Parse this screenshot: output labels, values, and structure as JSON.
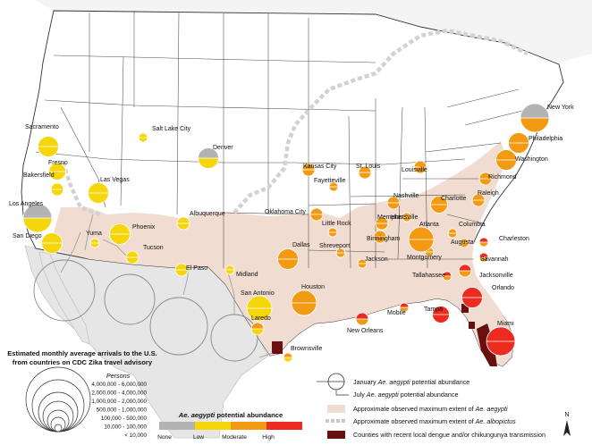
{
  "colors": {
    "none": "#b3b3b3",
    "low": "#f5d60a",
    "moderate": "#f29b12",
    "high": "#ee2b1f",
    "aegypti_extent": "#f1dcd1",
    "albopictus_line": "#c8c8c8",
    "transmission": "#6a0f0f",
    "land": "#ffffff",
    "neighbor": "#e6e6e6",
    "border": "#333333"
  },
  "cities": [
    {
      "name": "Sacramento",
      "jan": "low",
      "jul": "low",
      "arrivals": 1500000,
      "link": "label-only"
    },
    {
      "name": "Fresno",
      "jan": "low",
      "jul": "low",
      "arrivals": 500000
    },
    {
      "name": "Bakersfield",
      "jan": "low",
      "jul": "low",
      "arrivals": 100000
    },
    {
      "name": "Los Angeles",
      "jan": "none",
      "jul": "low",
      "arrivals": 5000000
    },
    {
      "name": "San Diego",
      "jan": "low",
      "jul": "low",
      "arrivals": 1500000
    },
    {
      "name": "Las Vegas",
      "jan": "low",
      "jul": "low",
      "arrivals": 1000000
    },
    {
      "name": "Yuma",
      "jan": "low",
      "jul": "low",
      "arrivals": 50000
    },
    {
      "name": "Phoenix",
      "jan": "low",
      "jul": "low",
      "arrivals": 1500000
    },
    {
      "name": "Tucson",
      "jan": "low",
      "jul": "low",
      "arrivals": 200000
    },
    {
      "name": "Salt Lake City",
      "jan": "low",
      "jul": "low",
      "arrivals": 50000
    },
    {
      "name": "Denver",
      "jan": "none",
      "jul": "low",
      "arrivals": 1500000
    },
    {
      "name": "Albuquerque",
      "jan": "low",
      "jul": "low",
      "arrivals": 200000
    },
    {
      "name": "El Paso",
      "jan": "low",
      "jul": "low",
      "arrivals": 200000
    },
    {
      "name": "Midland",
      "jan": "low",
      "jul": "low",
      "arrivals": 50000
    },
    {
      "name": "San Antonio",
      "jan": "low",
      "jul": "low",
      "arrivals": 2500000
    },
    {
      "name": "Laredo",
      "jan": "moderate",
      "jul": "low",
      "arrivals": 100000
    },
    {
      "name": "Brownsville",
      "jan": "moderate",
      "jul": "low",
      "arrivals": 50000
    },
    {
      "name": "Houston",
      "jan": "moderate",
      "jul": "moderate",
      "arrivals": 2500000
    },
    {
      "name": "Dallas",
      "jan": "moderate",
      "jul": "moderate",
      "arrivals": 1000000
    },
    {
      "name": "Shreveport",
      "jan": "moderate",
      "jul": "moderate",
      "arrivals": 50000
    },
    {
      "name": "Oklahoma City",
      "jan": "moderate",
      "jul": "moderate",
      "arrivals": 100000
    },
    {
      "name": "Kansas City",
      "jan": "moderate",
      "jul": "moderate",
      "arrivals": 100000
    },
    {
      "name": "St. Louis",
      "jan": "moderate",
      "jul": "moderate",
      "arrivals": 100000
    },
    {
      "name": "Fayetteville",
      "jan": "moderate",
      "jul": "moderate",
      "arrivals": 30000
    },
    {
      "name": "Little Rock",
      "jan": "moderate",
      "jul": "moderate",
      "arrivals": 50000
    },
    {
      "name": "Memphis",
      "jan": "moderate",
      "jul": "moderate",
      "arrivals": 100000
    },
    {
      "name": "Louisville",
      "jan": "moderate",
      "jul": "moderate",
      "arrivals": 100000
    },
    {
      "name": "Nashville",
      "jan": "moderate",
      "jul": "moderate",
      "arrivals": 100000
    },
    {
      "name": "Huntsville",
      "jan": "moderate",
      "jul": "moderate",
      "arrivals": 50000
    },
    {
      "name": "Birmingham",
      "jan": "moderate",
      "jul": "moderate",
      "arrivals": 100000
    },
    {
      "name": "Jackson",
      "jan": "moderate",
      "jul": "moderate",
      "arrivals": 50000
    },
    {
      "name": "Montgomery",
      "jan": "moderate",
      "jul": "moderate",
      "arrivals": 50000
    },
    {
      "name": "Mobile",
      "jan": "high",
      "jul": "moderate",
      "arrivals": 50000
    },
    {
      "name": "New Orleans",
      "jan": "high",
      "jul": "moderate",
      "arrivals": 100000
    },
    {
      "name": "Tallahassee",
      "jan": "high",
      "jul": "moderate",
      "arrivals": 50000
    },
    {
      "name": "Tampa",
      "jan": "high",
      "jul": "high",
      "arrivals": 500000
    },
    {
      "name": "Orlando",
      "jan": "high",
      "jul": "high",
      "arrivals": 1500000
    },
    {
      "name": "Miami",
      "jan": "high",
      "jul": "high",
      "arrivals": 5000000
    },
    {
      "name": "Jacksonville",
      "jan": "high",
      "jul": "moderate",
      "arrivals": 100000
    },
    {
      "name": "Savannah",
      "jan": "high",
      "jul": "moderate",
      "arrivals": 50000
    },
    {
      "name": "Charleston",
      "jan": "high",
      "jul": "moderate",
      "arrivals": 50000
    },
    {
      "name": "Augusta",
      "jan": "moderate",
      "jul": "moderate",
      "arrivals": 50000
    },
    {
      "name": "Columbia",
      "jan": "moderate",
      "jul": "moderate",
      "arrivals": 50000
    },
    {
      "name": "Atlanta",
      "jan": "moderate",
      "jul": "moderate",
      "arrivals": 2500000
    },
    {
      "name": "Charlotte",
      "jan": "moderate",
      "jul": "moderate",
      "arrivals": 500000
    },
    {
      "name": "Raleigh",
      "jan": "moderate",
      "jul": "moderate",
      "arrivals": 200000
    },
    {
      "name": "Richmond",
      "jan": "moderate",
      "jul": "moderate",
      "arrivals": 100000
    },
    {
      "name": "Washington",
      "jan": "moderate",
      "jul": "moderate",
      "arrivals": 1500000
    },
    {
      "name": "Philadelphia",
      "jan": "moderate",
      "jul": "moderate",
      "arrivals": 1000000
    },
    {
      "name": "New York",
      "jan": "none",
      "jul": "moderate",
      "arrivals": 6000000
    }
  ],
  "legend": {
    "arrivals_title_line1": "Estimated monthly average arrivals to the U.S.",
    "arrivals_title_line2": "from countries on CDC Zika travel advisory",
    "persons_label": "Persons",
    "scale_classes": [
      "4,000,000 - 6,000,000",
      "2,000,000 - 4,000,000",
      "1,000,000 - 2,000,000",
      "500,000 - 1,000,000",
      "100,000 - 500,000",
      "10,000 - 100,000",
      "< 10,000"
    ],
    "abundance_title_species": "Ae. aegypti",
    "abundance_title_rest": " potential abundance",
    "abundance_levels": [
      "None",
      "Low",
      "Moderate",
      "High"
    ],
    "january_label_pre": "January ",
    "january_label_species": "Ae. aegypti",
    "january_label_post": " potential abundance",
    "july_label_pre": "July ",
    "july_label_species": "Ae. aegypti",
    "july_label_post": " potential abundance",
    "aegypti_extent_pre": "Approximate observed maximum extent of ",
    "aegypti_extent_species": "Ae. aegypti",
    "albopictus_extent_pre": "Approximate observed maximum extent of ",
    "albopictus_extent_species": "Ae. albopictus",
    "transmission_label": "Counties with recent local dengue and/or chikungunya transmission"
  },
  "north_arrow": "N"
}
